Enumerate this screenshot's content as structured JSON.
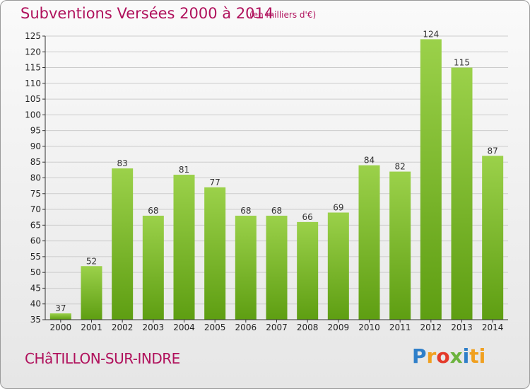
{
  "header": {
    "title": "Subventions Versées 2000 à 2014",
    "subtitle": "(en milliers d'€)"
  },
  "footer": {
    "location": "CHâTILLON-SUR-INDRE",
    "logo_letters": [
      "P",
      "r",
      "o",
      "x",
      "i",
      "ti"
    ]
  },
  "colors": {
    "title": "#b0115c",
    "bar_top": "#9bd14a",
    "bar_bottom": "#5e9e12",
    "grid": "#cccccc"
  },
  "chart_data": {
    "type": "bar",
    "categories": [
      "2000",
      "2001",
      "2002",
      "2003",
      "2004",
      "2005",
      "2006",
      "2007",
      "2008",
      "2009",
      "2010",
      "2011",
      "2012",
      "2013",
      "2014"
    ],
    "values": [
      37,
      52,
      83,
      68,
      81,
      77,
      68,
      68,
      66,
      69,
      84,
      82,
      124,
      115,
      87
    ],
    "ylim": [
      35,
      125
    ],
    "yticks": [
      35,
      40,
      45,
      50,
      55,
      60,
      65,
      70,
      75,
      80,
      85,
      90,
      95,
      100,
      105,
      110,
      115,
      120,
      125
    ],
    "grid": true,
    "title": "Subventions Versées 2000 à 2014",
    "xlabel": "",
    "ylabel": ""
  }
}
